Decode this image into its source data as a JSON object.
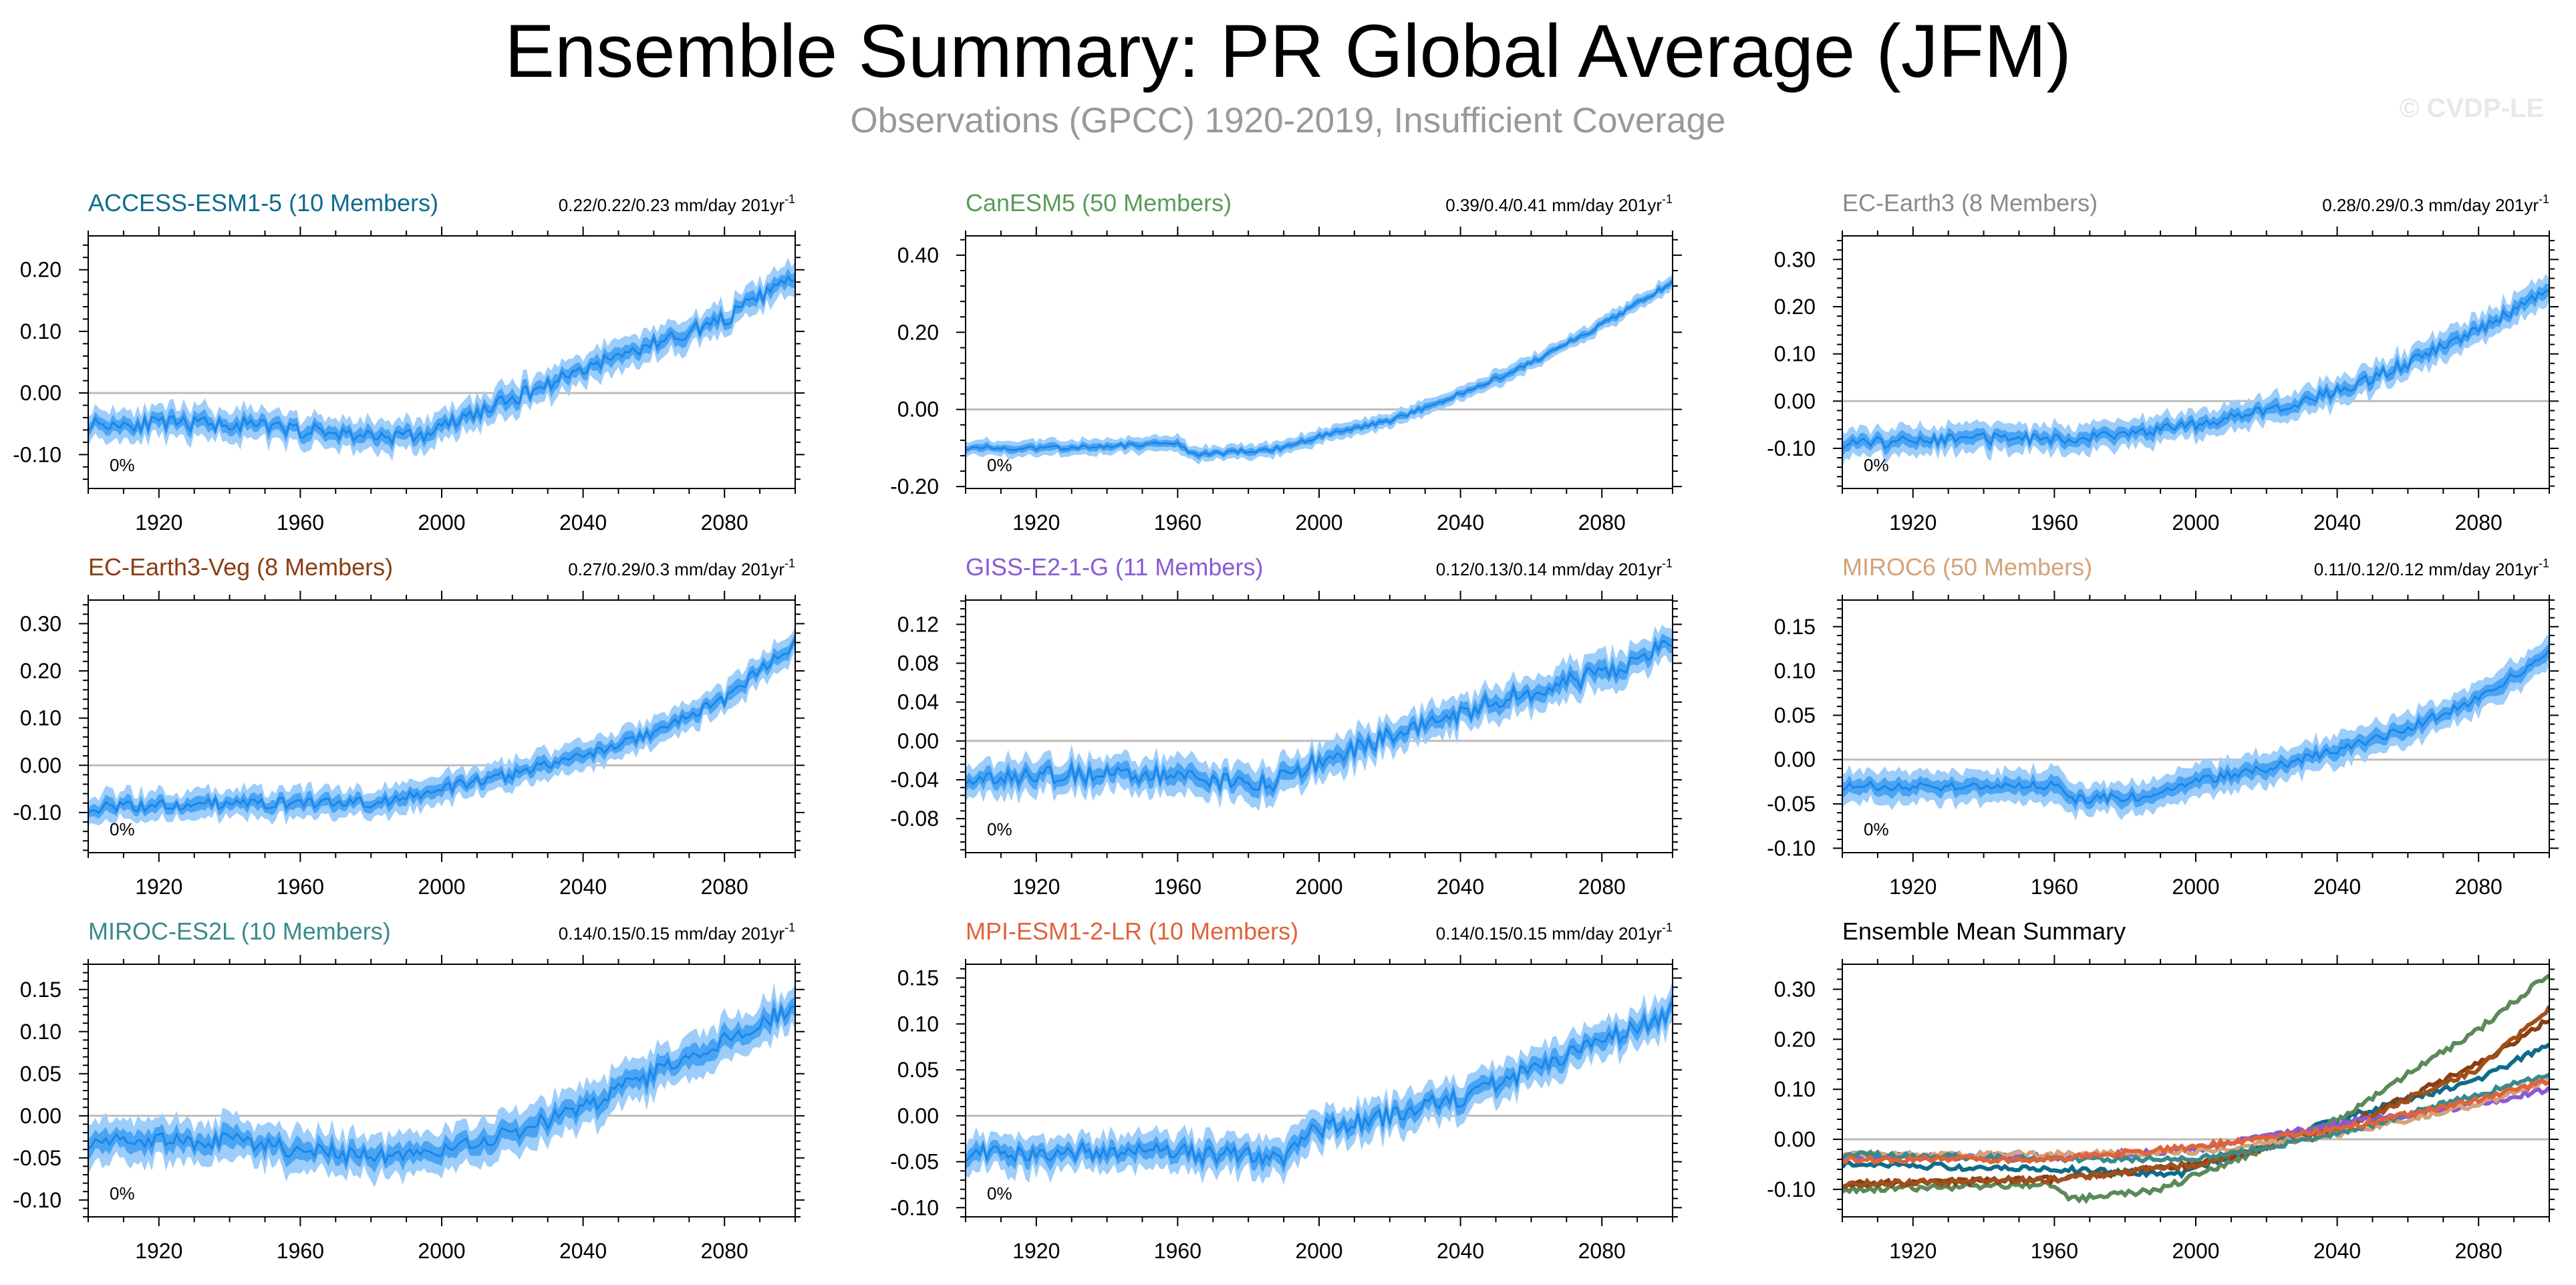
{
  "title": "Ensemble Summary: PR Global Average (JFM)",
  "subtitle": "Observations (GPCC) 1920-2019, Insufficient Coverage",
  "copyright": "© CVDP-LE",
  "colors": {
    "band_outer": "#9ccdfb",
    "band_inner": "#4aa4f4",
    "mean_line": "#1a86e8",
    "zero_line": "#bbbbbb",
    "axis": "#000000"
  },
  "chart_data": [
    {
      "type": "area",
      "title": "ACCESS-ESM1-5 (10 Members)",
      "title_color": "#0e6c8a",
      "trend_text": "0.22/0.22/0.23 mm/day 201yr",
      "trend_exp": "-1",
      "coverage_label": "0%",
      "x_range": [
        1900,
        2100
      ],
      "x_ticks": [
        1920,
        1960,
        2000,
        2040,
        2080
      ],
      "ylim": [
        -0.155,
        0.255
      ],
      "y_ticks": [
        -0.1,
        0.0,
        0.1,
        0.2
      ],
      "y_tick_labels": [
        "-0.10",
        "0.00",
        "0.10",
        "0.20"
      ],
      "anchors": {
        "x": [
          1900,
          1940,
          1960,
          1980,
          1995,
          2000,
          2020,
          2040,
          2060,
          2080,
          2100
        ],
        "y": [
          -0.05,
          -0.05,
          -0.06,
          -0.07,
          -0.07,
          -0.055,
          -0.01,
          0.04,
          0.08,
          0.12,
          0.19
        ]
      },
      "noise": 0.012,
      "spread": 0.025
    },
    {
      "type": "area",
      "title": "CanESM5 (50 Members)",
      "title_color": "#5a9a58",
      "trend_text": "0.39/0.4/0.41 mm/day 201yr",
      "trend_exp": "-1",
      "coverage_label": "0%",
      "x_range": [
        1900,
        2100
      ],
      "x_ticks": [
        1920,
        1960,
        2000,
        2040,
        2080
      ],
      "ylim": [
        -0.205,
        0.45
      ],
      "y_ticks": [
        -0.2,
        0.0,
        0.2,
        0.4
      ],
      "y_tick_labels": [
        "-0.20",
        "0.00",
        "0.20",
        "0.40"
      ],
      "anchors": {
        "x": [
          1900,
          1920,
          1960,
          1965,
          1990,
          2000,
          2020,
          2040,
          2060,
          2080,
          2100
        ],
        "y": [
          -0.1,
          -0.1,
          -0.09,
          -0.12,
          -0.1,
          -0.07,
          -0.03,
          0.04,
          0.12,
          0.22,
          0.33
        ]
      },
      "noise": 0.006,
      "spread": 0.02
    },
    {
      "type": "area",
      "title": "EC-Earth3 (8 Members)",
      "title_color": "#8a8a8a",
      "trend_text": "0.28/0.29/0.3 mm/day 201yr",
      "trend_exp": "-1",
      "coverage_label": "0%",
      "x_range": [
        1900,
        2100
      ],
      "x_ticks": [
        1920,
        1960,
        2000,
        2040,
        2080
      ],
      "ylim": [
        -0.185,
        0.35
      ],
      "y_ticks": [
        -0.1,
        0.0,
        0.1,
        0.2,
        0.3
      ],
      "y_tick_labels": [
        "-0.10",
        "0.00",
        "0.10",
        "0.20",
        "0.30"
      ],
      "anchors": {
        "x": [
          1900,
          1940,
          1960,
          1980,
          2000,
          2020,
          2040,
          2060,
          2080,
          2100
        ],
        "y": [
          -0.09,
          -0.08,
          -0.08,
          -0.07,
          -0.05,
          -0.02,
          0.02,
          0.08,
          0.15,
          0.24
        ]
      },
      "noise": 0.012,
      "spread": 0.03
    },
    {
      "type": "area",
      "title": "EC-Earth3-Veg (8 Members)",
      "title_color": "#8b3d12",
      "trend_text": "0.27/0.29/0.3 mm/day 201yr",
      "trend_exp": "-1",
      "coverage_label": "0%",
      "x_range": [
        1900,
        2100
      ],
      "x_ticks": [
        1920,
        1960,
        2000,
        2040,
        2080
      ],
      "ylim": [
        -0.185,
        0.35
      ],
      "y_ticks": [
        -0.1,
        0.0,
        0.1,
        0.2,
        0.3
      ],
      "y_tick_labels": [
        "-0.10",
        "0.00",
        "0.10",
        "0.20",
        "0.30"
      ],
      "anchors": {
        "x": [
          1900,
          1940,
          1960,
          1980,
          2000,
          2020,
          2040,
          2060,
          2080,
          2100
        ],
        "y": [
          -0.09,
          -0.08,
          -0.08,
          -0.08,
          -0.05,
          -0.02,
          0.02,
          0.07,
          0.14,
          0.26
        ]
      },
      "noise": 0.012,
      "spread": 0.03
    },
    {
      "type": "area",
      "title": "GISS-E2-1-G (11 Members)",
      "title_color": "#8a5ad6",
      "trend_text": "0.12/0.13/0.14 mm/day 201yr",
      "trend_exp": "-1",
      "coverage_label": "0%",
      "x_range": [
        1900,
        2100
      ],
      "x_ticks": [
        1920,
        1960,
        2000,
        2040,
        2080
      ],
      "ylim": [
        -0.115,
        0.145
      ],
      "y_ticks": [
        -0.08,
        -0.04,
        0.0,
        0.04,
        0.08,
        0.12
      ],
      "y_tick_labels": [
        "-0.08",
        "-0.04",
        "0.00",
        "0.04",
        "0.08",
        "0.12"
      ],
      "anchors": {
        "x": [
          1900,
          1940,
          1960,
          1980,
          1990,
          2000,
          2020,
          2040,
          2060,
          2080,
          2100
        ],
        "y": [
          -0.035,
          -0.035,
          -0.035,
          -0.045,
          -0.04,
          -0.02,
          0.005,
          0.03,
          0.05,
          0.07,
          0.1
        ]
      },
      "noise": 0.01,
      "spread": 0.018
    },
    {
      "type": "area",
      "title": "MIROC6 (50 Members)",
      "title_color": "#d4a27a",
      "trend_text": "0.11/0.12/0.12 mm/day 201yr",
      "trend_exp": "-1",
      "coverage_label": "0%",
      "x_range": [
        1900,
        2100
      ],
      "x_ticks": [
        1920,
        1960,
        2000,
        2040,
        2080
      ],
      "ylim": [
        -0.105,
        0.18
      ],
      "y_ticks": [
        -0.1,
        -0.05,
        0.0,
        0.05,
        0.1,
        0.15
      ],
      "y_tick_labels": [
        "-0.10",
        "-0.05",
        "0.00",
        "0.05",
        "0.10",
        "0.15"
      ],
      "anchors": {
        "x": [
          1900,
          1940,
          1960,
          1965,
          1990,
          2000,
          2020,
          2040,
          2060,
          2080,
          2100
        ],
        "y": [
          -0.03,
          -0.03,
          -0.03,
          -0.045,
          -0.04,
          -0.025,
          -0.01,
          0.01,
          0.035,
          0.07,
          0.12
        ]
      },
      "noise": 0.005,
      "spread": 0.018
    },
    {
      "type": "area",
      "title": "MIROC-ES2L (10 Members)",
      "title_color": "#3a8a8a",
      "trend_text": "0.14/0.15/0.15 mm/day 201yr",
      "trend_exp": "-1",
      "coverage_label": "0%",
      "x_range": [
        1900,
        2100
      ],
      "x_ticks": [
        1920,
        1960,
        2000,
        2040,
        2080
      ],
      "ylim": [
        -0.12,
        0.18
      ],
      "y_ticks": [
        -0.1,
        -0.05,
        0.0,
        0.05,
        0.1,
        0.15
      ],
      "y_tick_labels": [
        "-0.10",
        "-0.05",
        "0.00",
        "0.05",
        "0.10",
        "0.15"
      ],
      "anchors": {
        "x": [
          1900,
          1940,
          1960,
          1980,
          2000,
          2020,
          2040,
          2060,
          2080,
          2100
        ],
        "y": [
          -0.03,
          -0.03,
          -0.04,
          -0.05,
          -0.04,
          -0.02,
          0.01,
          0.05,
          0.09,
          0.13
        ]
      },
      "noise": 0.01,
      "spread": 0.025
    },
    {
      "type": "area",
      "title": "MPI-ESM1-2-LR (10 Members)",
      "title_color": "#e0633a",
      "trend_text": "0.14/0.15/0.15 mm/day 201yr",
      "trend_exp": "-1",
      "coverage_label": "0%",
      "x_range": [
        1900,
        2100
      ],
      "x_ticks": [
        1920,
        1960,
        2000,
        2040,
        2080
      ],
      "ylim": [
        -0.11,
        0.165
      ],
      "y_ticks": [
        -0.1,
        -0.05,
        0.0,
        0.05,
        0.1,
        0.15
      ],
      "y_tick_labels": [
        "-0.10",
        "-0.05",
        "0.00",
        "0.05",
        "0.10",
        "0.15"
      ],
      "anchors": {
        "x": [
          1900,
          1940,
          1960,
          1980,
          1990,
          1995,
          2000,
          2020,
          2040,
          2060,
          2080,
          2100
        ],
        "y": [
          -0.04,
          -0.04,
          -0.04,
          -0.045,
          -0.05,
          -0.02,
          -0.015,
          0.0,
          0.02,
          0.05,
          0.08,
          0.115
        ]
      },
      "noise": 0.01,
      "spread": 0.02
    },
    {
      "type": "line",
      "title": "Ensemble Mean Summary",
      "title_color": "#000000",
      "trend_text": "",
      "trend_exp": "",
      "coverage_label": "",
      "x_range": [
        1900,
        2100
      ],
      "x_ticks": [
        1920,
        1960,
        2000,
        2040,
        2080
      ],
      "ylim": [
        -0.155,
        0.35
      ],
      "y_ticks": [
        -0.1,
        0.0,
        0.1,
        0.2,
        0.3
      ],
      "y_tick_labels": [
        "-0.10",
        "0.00",
        "0.10",
        "0.20",
        "0.30"
      ],
      "series": [
        {
          "name": "ACCESS-ESM1-5",
          "color": "#0e6c8a",
          "x": [
            1900,
            1960,
            1995,
            2040,
            2080,
            2100
          ],
          "y": [
            -0.05,
            -0.06,
            -0.07,
            0.04,
            0.12,
            0.19
          ]
        },
        {
          "name": "CanESM5",
          "color": "#5a8a58",
          "x": [
            1900,
            1960,
            1965,
            1990,
            2040,
            2080,
            2100
          ],
          "y": [
            -0.1,
            -0.09,
            -0.12,
            -0.1,
            0.04,
            0.22,
            0.33
          ]
        },
        {
          "name": "EC-Earth3",
          "color": "#8b3d12",
          "x": [
            1900,
            1960,
            2000,
            2040,
            2080,
            2100
          ],
          "y": [
            -0.09,
            -0.08,
            -0.05,
            0.02,
            0.15,
            0.24
          ]
        },
        {
          "name": "EC-Earth3-Veg",
          "color": "#a0501a",
          "x": [
            1900,
            1960,
            2000,
            2040,
            2080,
            2100
          ],
          "y": [
            -0.09,
            -0.08,
            -0.05,
            0.02,
            0.14,
            0.26
          ]
        },
        {
          "name": "GISS-E2-1-G",
          "color": "#8a5ad6",
          "x": [
            1900,
            1960,
            2000,
            2040,
            2080,
            2100
          ],
          "y": [
            -0.035,
            -0.035,
            -0.02,
            0.03,
            0.07,
            0.1
          ]
        },
        {
          "name": "MIROC6",
          "color": "#d4a27a",
          "x": [
            1900,
            1960,
            2000,
            2040,
            2080,
            2100
          ],
          "y": [
            -0.03,
            -0.03,
            -0.025,
            0.01,
            0.07,
            0.12
          ]
        },
        {
          "name": "MIROC-ES2L",
          "color": "#3a8a8a",
          "x": [
            1900,
            1960,
            2000,
            2040,
            2080,
            2100
          ],
          "y": [
            -0.03,
            -0.04,
            -0.04,
            0.01,
            0.09,
            0.13
          ]
        },
        {
          "name": "MPI-ESM1-2-LR",
          "color": "#e0633a",
          "x": [
            1900,
            1960,
            2000,
            2040,
            2080,
            2100
          ],
          "y": [
            -0.04,
            -0.04,
            -0.015,
            0.02,
            0.08,
            0.115
          ]
        }
      ]
    }
  ]
}
